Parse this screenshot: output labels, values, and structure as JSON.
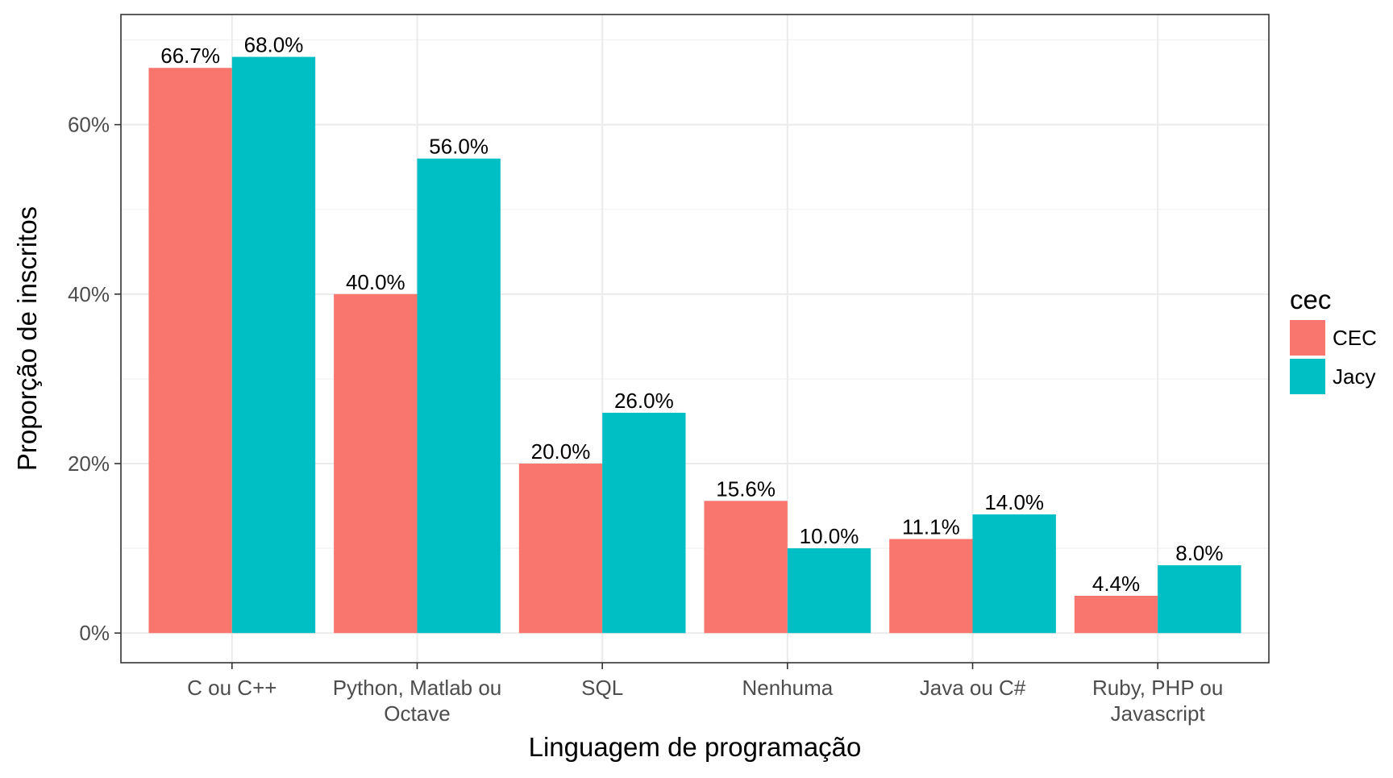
{
  "chart_data": {
    "type": "bar",
    "xlabel": "Linguagem de programação",
    "ylabel": "Proporção de inscritos",
    "ylim": [
      -0.035,
      0.73
    ],
    "yticks": [
      0,
      0.2,
      0.4,
      0.6
    ],
    "ytick_labels": [
      "0%",
      "20%",
      "40%",
      "60%"
    ],
    "categories": [
      [
        "C ou C++"
      ],
      [
        "Python, Matlab ou",
        "Octave"
      ],
      [
        "SQL"
      ],
      [
        "Nenhuma"
      ],
      [
        "Java ou C#"
      ],
      [
        "Ruby, PHP ou",
        "Javascript"
      ]
    ],
    "series": [
      {
        "name": "CEC",
        "color": "#F8766D",
        "values": [
          0.667,
          0.4,
          0.2,
          0.156,
          0.111,
          0.044
        ],
        "labels": [
          "66.7%",
          "40.0%",
          "20.0%",
          "15.6%",
          "11.1%",
          "4.4%"
        ]
      },
      {
        "name": "Jacy",
        "color": "#00BFC4",
        "values": [
          0.68,
          0.56,
          0.26,
          0.1,
          0.14,
          0.08
        ],
        "labels": [
          "68.0%",
          "56.0%",
          "26.0%",
          "10.0%",
          "14.0%",
          "8.0%"
        ]
      }
    ],
    "legend": {
      "title": "cec",
      "position": "right"
    },
    "grid": true
  }
}
